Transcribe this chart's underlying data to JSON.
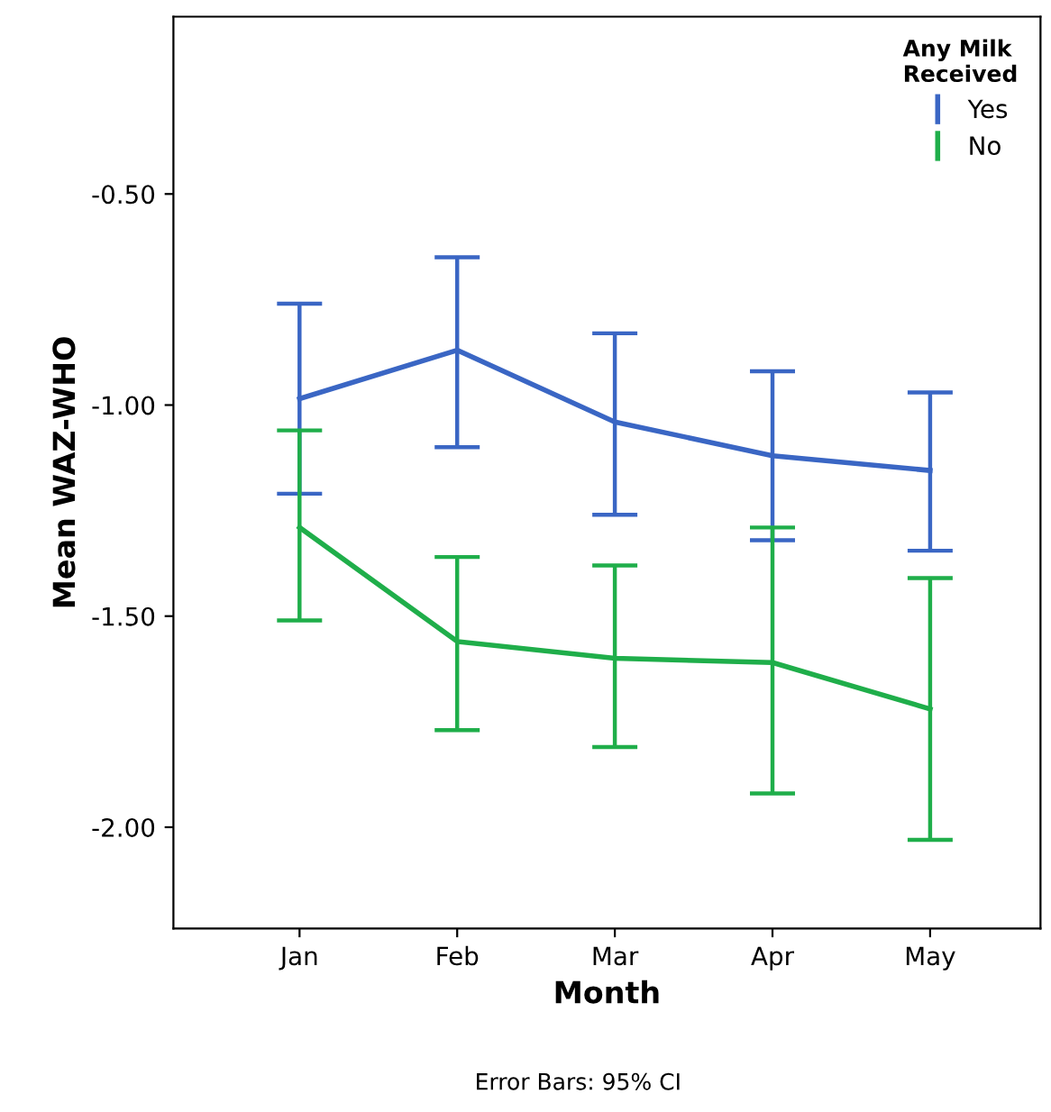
{
  "chart_data": {
    "type": "line",
    "xlabel": "Month",
    "ylabel": "Mean WAZ-WHO",
    "legend_title": "Any Milk\nReceived",
    "categories": [
      "Jan",
      "Feb",
      "Mar",
      "Apr",
      "May"
    ],
    "series": [
      {
        "name": "Yes",
        "color": "#3a66c4",
        "values": [
          -0.985,
          -0.87,
          -1.04,
          -1.12,
          -1.155
        ],
        "errors": [
          [
            -1.21,
            -0.76
          ],
          [
            -1.1,
            -0.65
          ],
          [
            -1.26,
            -0.83
          ],
          [
            -1.32,
            -0.92
          ],
          [
            -1.345,
            -0.97
          ]
        ]
      },
      {
        "name": "No",
        "color": "#1fae4a",
        "values": [
          -1.29,
          -1.56,
          -1.6,
          -1.61,
          -1.72
        ],
        "errors": [
          [
            -1.51,
            -1.06
          ],
          [
            -1.77,
            -1.36
          ],
          [
            -1.81,
            -1.38
          ],
          [
            -1.92,
            -1.29
          ],
          [
            -2.03,
            -1.41
          ]
        ]
      }
    ],
    "ylim": [
      -2.24,
      -0.08
    ],
    "yticks": [
      {
        "value": -2.0,
        "label": "-2.00"
      },
      {
        "value": -1.5,
        "label": "-1.50"
      },
      {
        "value": -1.0,
        "label": "-1.00"
      },
      {
        "value": -0.5,
        "label": "-0.50"
      }
    ],
    "grid": false,
    "legend": "top right",
    "marker": "none",
    "line_style": "solid",
    "annotations": [
      "Error Bars: 95% CI"
    ]
  }
}
